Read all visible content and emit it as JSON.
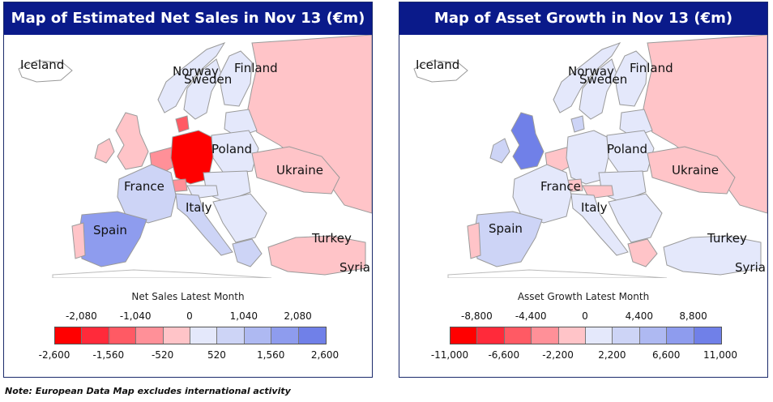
{
  "left_panel": {
    "title": "Map of Estimated Net Sales in Nov 13 (€m)",
    "legend": {
      "title": "Net Sales Latest Month",
      "upper_ticks": [
        "-2,080",
        "-1,040",
        "0",
        "1,040",
        "2,080"
      ],
      "lower_ticks": [
        "-2,600",
        "-1,560",
        "-520",
        "520",
        "1,560",
        "2,600"
      ],
      "colors": [
        "#ff0000",
        "#ff2a3a",
        "#ff5a64",
        "#ff9098",
        "#ffc4c8",
        "#e4e8fb",
        "#cdd4f6",
        "#aeb9f2",
        "#8e9cee",
        "#7080e8"
      ]
    },
    "labels": {
      "iceland": "Iceland",
      "norway": "Norway",
      "sweden": "Sweden",
      "finland": "Finland",
      "poland": "Poland",
      "ukraine": "Ukraine",
      "france": "France",
      "italy": "Italy",
      "spain": "Spain",
      "turkey": "Turkey",
      "syria": "Syria"
    },
    "country_colors": {
      "sweden": "#e4e8fb",
      "finland": "#e4e8fb",
      "norway": "#e4e8fb",
      "uk": "#ffc4c8",
      "ireland": "#ffc4c8",
      "france": "#cdd4f6",
      "spain": "#8e9cee",
      "portugal": "#ffc4c8",
      "germany": "#ff0000",
      "benelux": "#ff9098",
      "switzerland": "#ff9098",
      "poland": "#e4e8fb",
      "ukraine": "#ffc4c8",
      "italy": "#cdd4f6",
      "russia": "#ffc4c8",
      "turkey": "#ffc4c8",
      "central": "#e4e8fb",
      "balkans": "#e4e8fb",
      "baltics": "#e4e8fb",
      "greece": "#cdd4f6",
      "denmark": "#ff5a64",
      "austria": "#e4e8fb"
    }
  },
  "right_panel": {
    "title": "Map of Asset Growth in Nov 13 (€m)",
    "legend": {
      "title": "Asset Growth Latest Month",
      "upper_ticks": [
        "-8,800",
        "-4,400",
        "0",
        "4,400",
        "8,800"
      ],
      "lower_ticks": [
        "-11,000",
        "-6,600",
        "-2,200",
        "2,200",
        "6,600",
        "11,000"
      ],
      "colors": [
        "#ff0000",
        "#ff2a3a",
        "#ff5a64",
        "#ff9098",
        "#ffc4c8",
        "#e4e8fb",
        "#cdd4f6",
        "#aeb9f2",
        "#8e9cee",
        "#7080e8"
      ]
    },
    "labels": {
      "iceland": "Iceland",
      "norway": "Norway",
      "sweden": "Sweden",
      "finland": "Finland",
      "poland": "Poland",
      "ukraine": "Ukraine",
      "france": "France",
      "italy": "Italy",
      "spain": "Spain",
      "turkey": "Turkey",
      "syria": "Syria"
    },
    "country_colors": {
      "sweden": "#e4e8fb",
      "finland": "#e4e8fb",
      "norway": "#e4e8fb",
      "uk": "#7080e8",
      "ireland": "#cdd4f6",
      "france": "#e4e8fb",
      "spain": "#cdd4f6",
      "portugal": "#ffc4c8",
      "germany": "#e4e8fb",
      "benelux": "#ffc4c8",
      "switzerland": "#ffc4c8",
      "poland": "#e4e8fb",
      "ukraine": "#ffc4c8",
      "italy": "#e4e8fb",
      "russia": "#ffc4c8",
      "turkey": "#e4e8fb",
      "central": "#e4e8fb",
      "balkans": "#e4e8fb",
      "baltics": "#e4e8fb",
      "greece": "#ffc4c8",
      "denmark": "#cdd4f6",
      "austria": "#ffc4c8"
    }
  },
  "note": "Note: European Data Map excludes international activity"
}
